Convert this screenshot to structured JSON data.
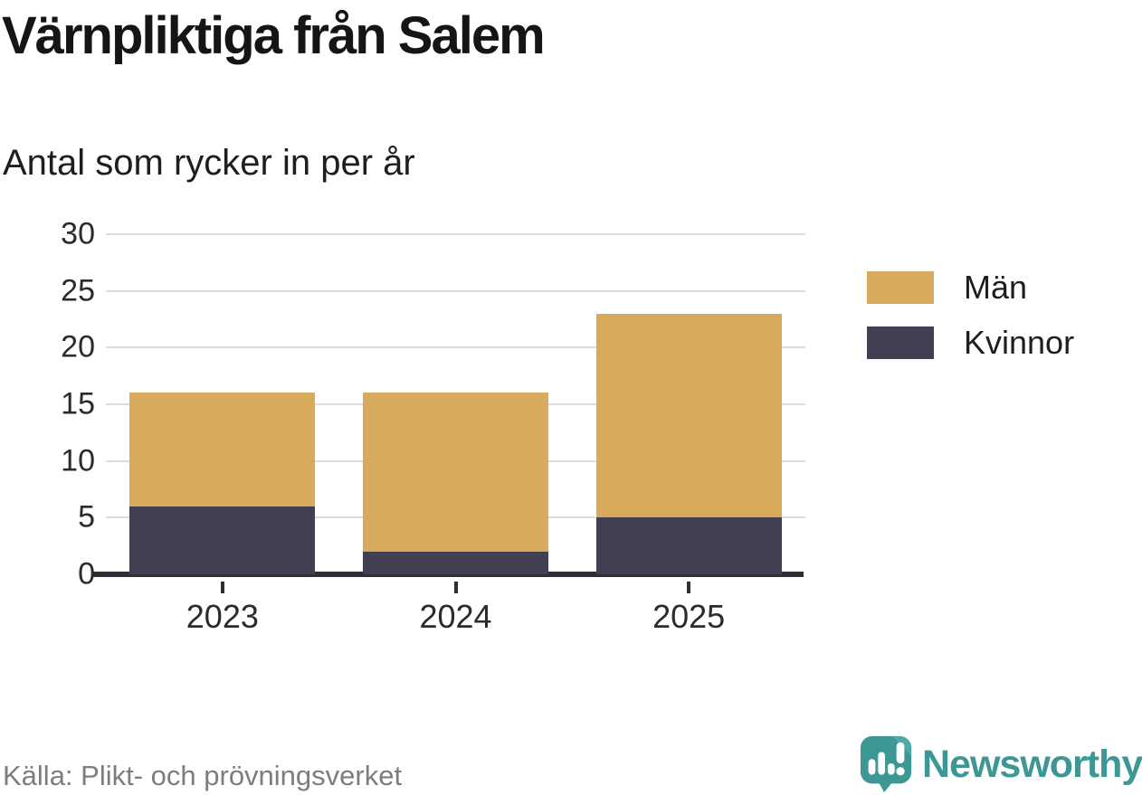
{
  "header": {
    "title": "Värnpliktiga från Salem",
    "subtitle": "Antal som rycker in per år"
  },
  "chart_data": {
    "type": "bar",
    "stacked": true,
    "title": "Värnpliktiga från Salem",
    "subtitle": "Antal som rycker in per år",
    "categories": [
      "2023",
      "2024",
      "2025"
    ],
    "series": [
      {
        "name": "Män",
        "color": "#d8ab5c",
        "values": [
          10,
          14,
          18
        ]
      },
      {
        "name": "Kvinnor",
        "color": "#413f51",
        "values": [
          6,
          2,
          5
        ]
      }
    ],
    "stack_bottom_first": [
      "Kvinnor",
      "Män"
    ],
    "totals": [
      16,
      16,
      23
    ],
    "ylim": [
      0,
      30
    ],
    "ytick_step": 5,
    "yticks": [
      0,
      5,
      10,
      15,
      20,
      25,
      30
    ],
    "grid": true,
    "legend_position": "right",
    "xlabel": "",
    "ylabel": ""
  },
  "footer": {
    "source": "Källa: Plikt- och prövningsverket",
    "brand": "Newsworthy"
  },
  "colors": {
    "men": "#d8ab5c",
    "women": "#413f51",
    "grid": "#dcdcdc",
    "axis": "#2f2e38",
    "text": "#2b2b2b",
    "muted": "#7d7d7d",
    "brand_teal": "#3c9795",
    "brand_teal_light": "#4fa9a6"
  }
}
